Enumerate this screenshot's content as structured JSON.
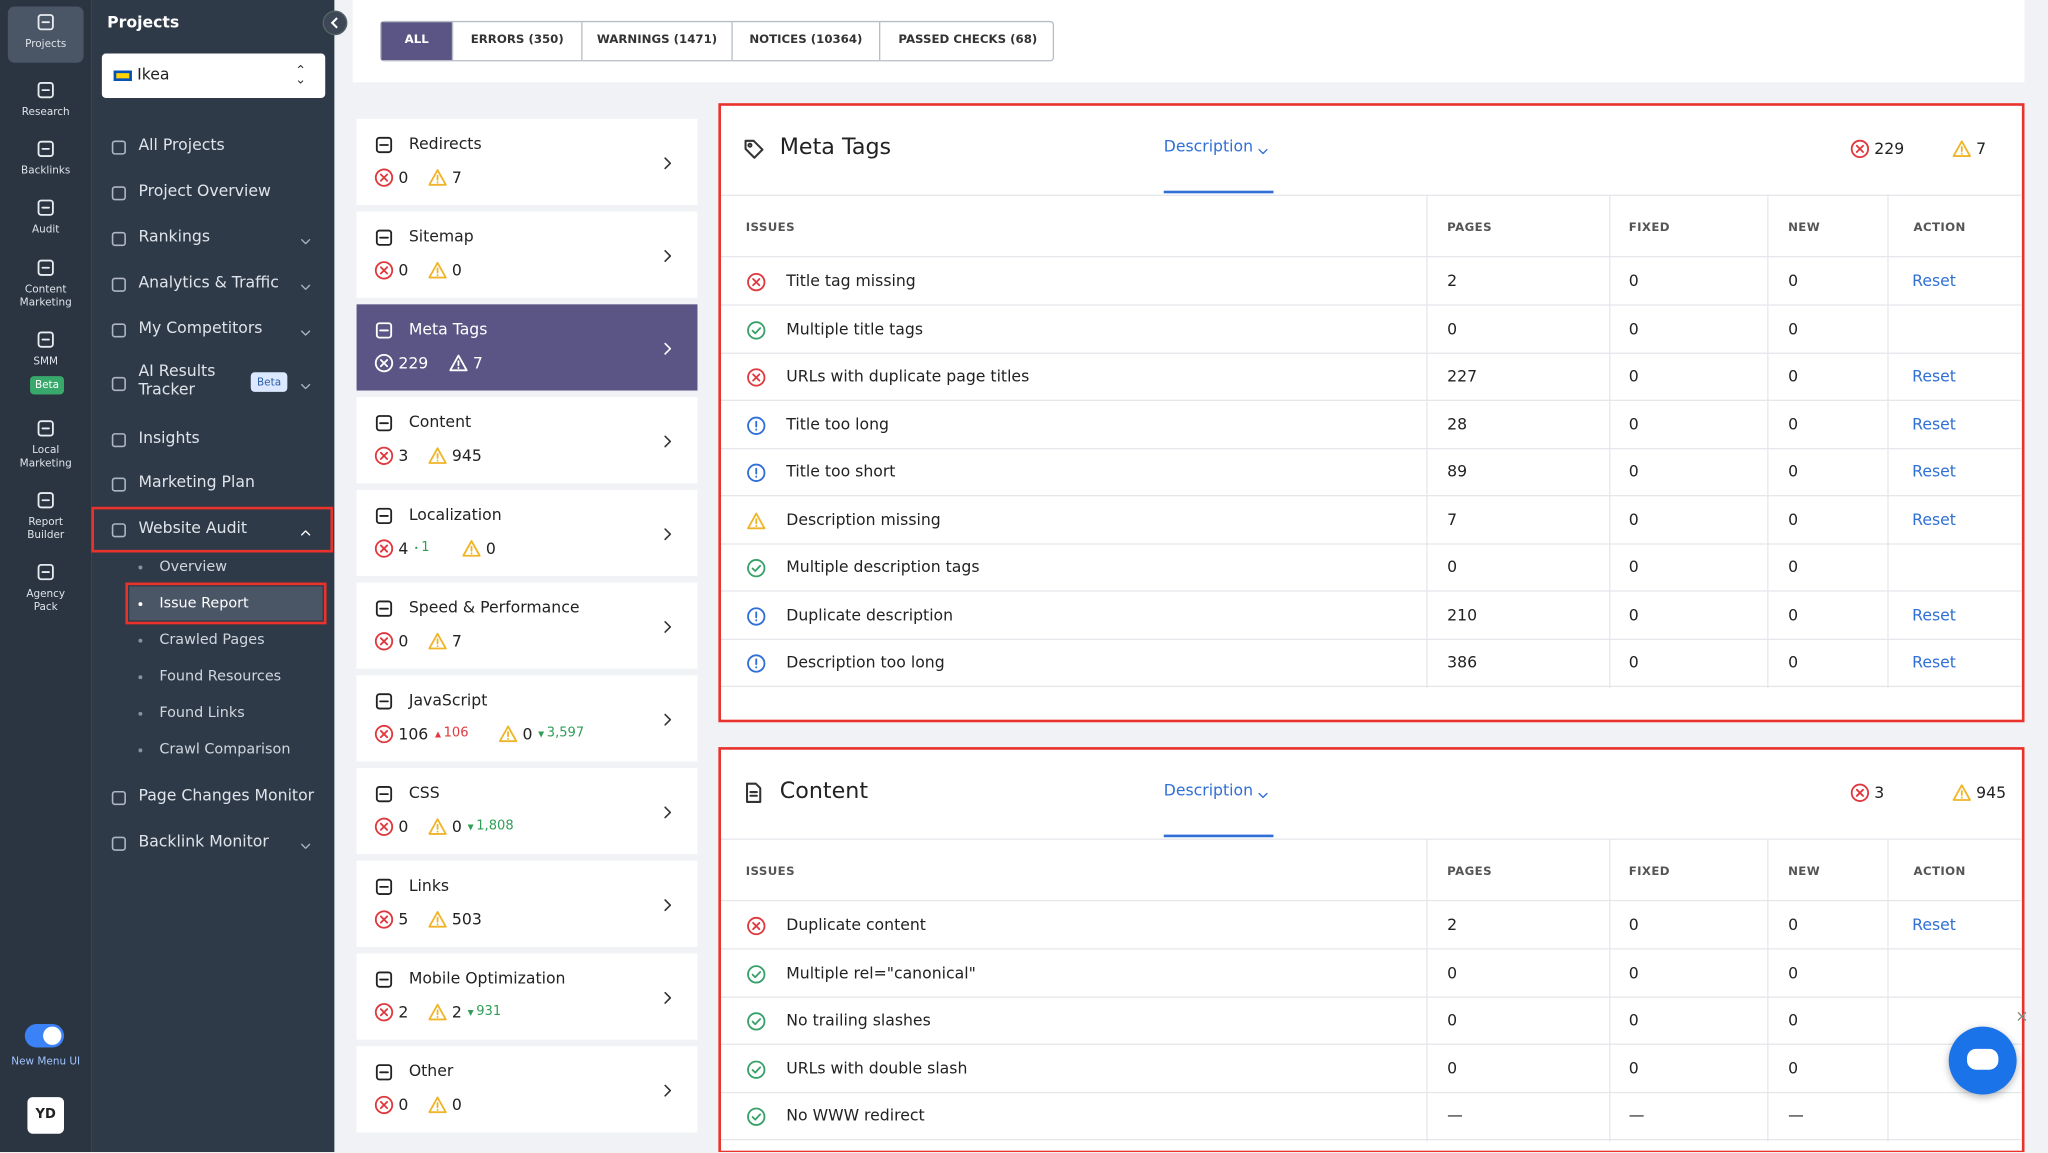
{
  "rail": [
    {
      "label": "Projects"
    },
    {
      "label": "Research"
    },
    {
      "label": "Backlinks"
    },
    {
      "label": "Audit"
    },
    {
      "label": "Content Marketing"
    },
    {
      "label": "SMM",
      "badge": "Beta"
    },
    {
      "label": "Local Marketing"
    },
    {
      "label": "Report Builder"
    },
    {
      "label": "Agency Pack"
    }
  ],
  "rail_footer": {
    "toggle_label": "New Menu UI",
    "avatar": "YD"
  },
  "sidebar": {
    "title": "Projects",
    "project": "Ikea",
    "items": [
      {
        "label": "All Projects"
      },
      {
        "label": "Project Overview"
      },
      {
        "label": "Rankings",
        "expandable": true
      },
      {
        "label": "Analytics & Traffic",
        "expandable": true
      },
      {
        "label": "My Competitors",
        "expandable": true
      },
      {
        "label": "AI Results Tracker",
        "badge": "Beta",
        "expandable": true
      },
      {
        "label": "Insights"
      },
      {
        "label": "Marketing Plan"
      },
      {
        "label": "Website Audit",
        "expanded": true,
        "highlighted": true,
        "children": [
          {
            "label": "Overview"
          },
          {
            "label": "Issue Report",
            "active": true
          },
          {
            "label": "Crawled Pages"
          },
          {
            "label": "Found Resources"
          },
          {
            "label": "Found Links"
          },
          {
            "label": "Crawl Comparison"
          }
        ]
      },
      {
        "label": "Page Changes Monitor"
      },
      {
        "label": "Backlink Monitor",
        "expandable": true
      }
    ]
  },
  "filters": [
    {
      "label": "ALL",
      "active": true
    },
    {
      "label": "ERRORS (350)"
    },
    {
      "label": "WARNINGS (1471)"
    },
    {
      "label": "NOTICES (10364)"
    },
    {
      "label": "PASSED CHECKS (68)"
    }
  ],
  "categories": [
    {
      "name": "Redirects",
      "errors": "0",
      "warnings": "7"
    },
    {
      "name": "Sitemap",
      "errors": "0",
      "warnings": "0"
    },
    {
      "name": "Meta Tags",
      "errors": "229",
      "warnings": "7",
      "active": true
    },
    {
      "name": "Content",
      "errors": "3",
      "warnings": "945"
    },
    {
      "name": "Localization",
      "errors": "4",
      "errors_delta": "1",
      "errors_delta_dir": "flat",
      "warnings": "0"
    },
    {
      "name": "Speed & Performance",
      "errors": "0",
      "warnings": "7"
    },
    {
      "name": "JavaScript",
      "errors": "106",
      "errors_delta": "106",
      "errors_delta_dir": "up",
      "warnings": "0",
      "warnings_delta": "3,597",
      "warnings_delta_dir": "down"
    },
    {
      "name": "CSS",
      "errors": "0",
      "warnings": "0",
      "warnings_delta": "1,808",
      "warnings_delta_dir": "down"
    },
    {
      "name": "Links",
      "errors": "5",
      "warnings": "503"
    },
    {
      "name": "Mobile Optimization",
      "errors": "2",
      "warnings": "2",
      "warnings_delta": "931",
      "warnings_delta_dir": "down"
    },
    {
      "name": "Other",
      "errors": "0",
      "warnings": "0"
    }
  ],
  "panels": [
    {
      "title": "Meta Tags",
      "tab": "Description",
      "errors": "229",
      "warnings": "7",
      "columns": [
        "ISSUES",
        "PAGES",
        "FIXED",
        "NEW",
        "ACTION"
      ],
      "rows": [
        {
          "status": "error",
          "issue": "Title tag missing",
          "pages": "2",
          "fixed": "0",
          "new": "0",
          "action": "Reset"
        },
        {
          "status": "ok",
          "issue": "Multiple title tags",
          "pages": "0",
          "fixed": "0",
          "new": "0"
        },
        {
          "status": "error",
          "issue": "URLs with duplicate page titles",
          "pages": "227",
          "fixed": "0",
          "new": "0",
          "action": "Reset"
        },
        {
          "status": "info",
          "issue": "Title too long",
          "pages": "28",
          "fixed": "0",
          "new": "0",
          "action": "Reset"
        },
        {
          "status": "info",
          "issue": "Title too short",
          "pages": "89",
          "fixed": "0",
          "new": "0",
          "action": "Reset"
        },
        {
          "status": "warning",
          "issue": "Description missing",
          "pages": "7",
          "fixed": "0",
          "new": "0",
          "action": "Reset"
        },
        {
          "status": "ok",
          "issue": "Multiple description tags",
          "pages": "0",
          "fixed": "0",
          "new": "0"
        },
        {
          "status": "info",
          "issue": "Duplicate description",
          "pages": "210",
          "fixed": "0",
          "new": "0",
          "action": "Reset"
        },
        {
          "status": "info",
          "issue": "Description too long",
          "pages": "386",
          "fixed": "0",
          "new": "0",
          "action": "Reset"
        }
      ]
    },
    {
      "title": "Content",
      "tab": "Description",
      "errors": "3",
      "warnings": "945",
      "columns": [
        "ISSUES",
        "PAGES",
        "FIXED",
        "NEW",
        "ACTION"
      ],
      "rows": [
        {
          "status": "error",
          "issue": "Duplicate content",
          "pages": "2",
          "fixed": "0",
          "new": "0",
          "action": "Reset"
        },
        {
          "status": "ok",
          "issue": "Multiple rel=\"canonical\"",
          "pages": "0",
          "fixed": "0",
          "new": "0"
        },
        {
          "status": "ok",
          "issue": "No trailing slashes",
          "pages": "0",
          "fixed": "0",
          "new": "0"
        },
        {
          "status": "ok",
          "issue": "URLs with double slash",
          "pages": "0",
          "fixed": "0",
          "new": "0"
        },
        {
          "status": "ok",
          "issue": "No WWW redirect",
          "pages": "—",
          "fixed": "—",
          "new": "—"
        }
      ]
    }
  ]
}
